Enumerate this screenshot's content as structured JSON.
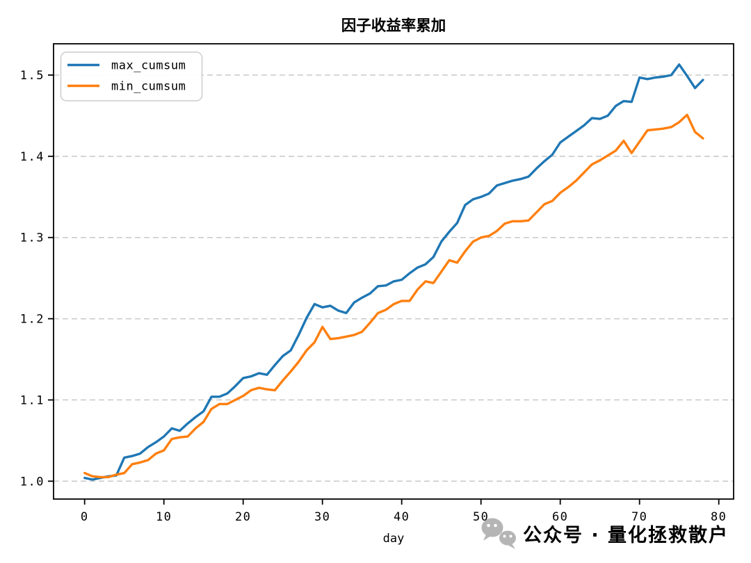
{
  "chart_data": {
    "type": "line",
    "title": "因子收益率累加",
    "xlabel": "day",
    "ylabel": "",
    "xlim": [
      -3.92,
      81.87
    ],
    "ylim": [
      0.978,
      1.5385
    ],
    "xticks": [
      0,
      10,
      20,
      30,
      40,
      50,
      60,
      70,
      80
    ],
    "yticks": [
      "1.0",
      "1.1",
      "1.2",
      "1.3",
      "1.4",
      "1.5"
    ],
    "ytick_values": [
      1.0,
      1.1,
      1.2,
      1.3,
      1.4,
      1.5
    ],
    "grid": "horizontal-dashed",
    "legend_position": "upper-left",
    "x": [
      0,
      1,
      2,
      3,
      4,
      5,
      6,
      7,
      8,
      9,
      10,
      11,
      12,
      13,
      14,
      15,
      16,
      17,
      18,
      19,
      20,
      21,
      22,
      23,
      24,
      25,
      26,
      27,
      28,
      29,
      30,
      31,
      32,
      33,
      34,
      35,
      36,
      37,
      38,
      39,
      40,
      41,
      42,
      43,
      44,
      45,
      46,
      47,
      48,
      49,
      50,
      51,
      52,
      53,
      54,
      55,
      56,
      57,
      58,
      59,
      60,
      61,
      62,
      63,
      64,
      65,
      66,
      67,
      68,
      69,
      70,
      71,
      72,
      73,
      74,
      75,
      76,
      77,
      78
    ],
    "series": [
      {
        "name": "max_cumsum",
        "color": "#1f77b4",
        "values": [
          1.004,
          1.002,
          1.004,
          1.006,
          1.007,
          1.029,
          1.031,
          1.034,
          1.042,
          1.048,
          1.055,
          1.065,
          1.062,
          1.071,
          1.079,
          1.086,
          1.104,
          1.104,
          1.108,
          1.117,
          1.127,
          1.129,
          1.133,
          1.131,
          1.143,
          1.154,
          1.161,
          1.18,
          1.201,
          1.218,
          1.214,
          1.216,
          1.21,
          1.207,
          1.22,
          1.226,
          1.231,
          1.24,
          1.241,
          1.246,
          1.248,
          1.256,
          1.263,
          1.267,
          1.276,
          1.295,
          1.307,
          1.318,
          1.34,
          1.347,
          1.35,
          1.354,
          1.364,
          1.367,
          1.37,
          1.372,
          1.375,
          1.385,
          1.394,
          1.402,
          1.417,
          1.424,
          1.431,
          1.438,
          1.447,
          1.446,
          1.45,
          1.462,
          1.468,
          1.467,
          1.497,
          1.495,
          1.497,
          1.498,
          1.5,
          1.513,
          1.499,
          1.484,
          1.494
        ]
      },
      {
        "name": "min_cumsum",
        "color": "#ff7f0e",
        "values": [
          1.01,
          1.006,
          1.005,
          1.005,
          1.008,
          1.01,
          1.021,
          1.023,
          1.026,
          1.034,
          1.038,
          1.052,
          1.054,
          1.055,
          1.065,
          1.073,
          1.089,
          1.095,
          1.095,
          1.1,
          1.105,
          1.112,
          1.115,
          1.113,
          1.112,
          1.124,
          1.135,
          1.147,
          1.161,
          1.171,
          1.19,
          1.175,
          1.176,
          1.178,
          1.18,
          1.184,
          1.195,
          1.207,
          1.211,
          1.218,
          1.222,
          1.222,
          1.236,
          1.246,
          1.244,
          1.258,
          1.272,
          1.269,
          1.283,
          1.295,
          1.3,
          1.302,
          1.308,
          1.317,
          1.32,
          1.32,
          1.321,
          1.331,
          1.341,
          1.345,
          1.355,
          1.362,
          1.37,
          1.38,
          1.39,
          1.395,
          1.401,
          1.407,
          1.419,
          1.404,
          1.418,
          1.432,
          1.433,
          1.434,
          1.436,
          1.442,
          1.451,
          1.43,
          1.422
        ]
      }
    ]
  },
  "legend": {
    "items": [
      {
        "label": "max_cumsum",
        "color": "#1f77b4"
      },
      {
        "label": "min_cumsum",
        "color": "#ff7f0e"
      }
    ]
  },
  "watermark": {
    "text": "公众号 · 量化拯救散户",
    "icon": "wechat-icon",
    "color": "#b5b5b5"
  },
  "style": {
    "grid_color": "#c8c8c8",
    "spine_color": "#000000",
    "background": "#ffffff"
  }
}
